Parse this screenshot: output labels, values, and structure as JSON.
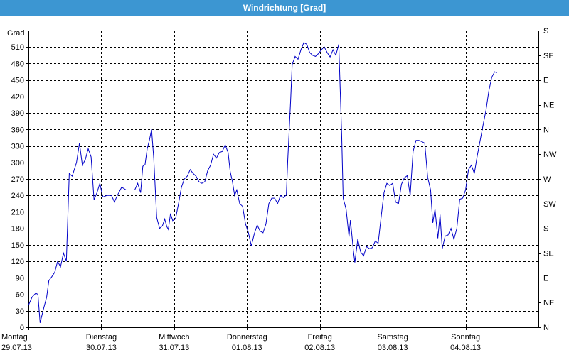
{
  "window": {
    "title": "Windrichtung [Grad]"
  },
  "chart_data": {
    "type": "line",
    "title": "Windrichtung [Grad]",
    "ylabel": "Grad",
    "ylim": [
      0,
      540
    ],
    "xlim": [
      0,
      7
    ],
    "grid": true,
    "y_ticks": [
      0,
      30,
      60,
      90,
      120,
      150,
      180,
      210,
      240,
      270,
      300,
      330,
      360,
      390,
      420,
      450,
      480,
      510
    ],
    "right_ticks": [
      {
        "value": 0,
        "label": "N"
      },
      {
        "value": 45,
        "label": "NE"
      },
      {
        "value": 90,
        "label": "E"
      },
      {
        "value": 135,
        "label": "SE"
      },
      {
        "value": 180,
        "label": "S"
      },
      {
        "value": 225,
        "label": "SW"
      },
      {
        "value": 270,
        "label": "W"
      },
      {
        "value": 315,
        "label": "NW"
      },
      {
        "value": 360,
        "label": "N"
      },
      {
        "value": 405,
        "label": "NE"
      },
      {
        "value": 450,
        "label": "E"
      },
      {
        "value": 495,
        "label": "SE"
      },
      {
        "value": 540,
        "label": "S"
      }
    ],
    "categories": [
      {
        "day": "Montag",
        "date": "29.07.13"
      },
      {
        "day": "Dienstag",
        "date": "30.07.13"
      },
      {
        "day": "Mittwoch",
        "date": "31.07.13"
      },
      {
        "day": "Donnerstag",
        "date": "01.08.13"
      },
      {
        "day": "Freitag",
        "date": "02.08.13"
      },
      {
        "day": "Samstag",
        "date": "03.08.13"
      },
      {
        "day": "Sonntag",
        "date": "04.08.13"
      }
    ],
    "series": [
      {
        "color": "#0000c8",
        "points": [
          [
            0.0,
            40
          ],
          [
            0.05,
            55
          ],
          [
            0.1,
            62
          ],
          [
            0.13,
            60
          ],
          [
            0.16,
            8
          ],
          [
            0.2,
            30
          ],
          [
            0.25,
            55
          ],
          [
            0.28,
            85
          ],
          [
            0.32,
            92
          ],
          [
            0.36,
            100
          ],
          [
            0.4,
            120
          ],
          [
            0.44,
            110
          ],
          [
            0.48,
            135
          ],
          [
            0.52,
            120
          ],
          [
            0.56,
            280
          ],
          [
            0.6,
            275
          ],
          [
            0.66,
            300
          ],
          [
            0.7,
            335
          ],
          [
            0.74,
            295
          ],
          [
            0.78,
            305
          ],
          [
            0.82,
            325
          ],
          [
            0.86,
            310
          ],
          [
            0.9,
            232
          ],
          [
            0.94,
            245
          ],
          [
            0.98,
            262
          ],
          [
            1.02,
            237
          ],
          [
            1.08,
            240
          ],
          [
            1.14,
            240
          ],
          [
            1.18,
            228
          ],
          [
            1.22,
            240
          ],
          [
            1.28,
            255
          ],
          [
            1.34,
            250
          ],
          [
            1.4,
            250
          ],
          [
            1.46,
            250
          ],
          [
            1.5,
            262
          ],
          [
            1.54,
            245
          ],
          [
            1.57,
            293
          ],
          [
            1.6,
            296
          ],
          [
            1.63,
            325
          ],
          [
            1.66,
            340
          ],
          [
            1.69,
            360
          ],
          [
            1.72,
            307
          ],
          [
            1.76,
            200
          ],
          [
            1.8,
            180
          ],
          [
            1.84,
            185
          ],
          [
            1.87,
            197
          ],
          [
            1.9,
            183
          ],
          [
            1.92,
            178
          ],
          [
            1.95,
            207
          ],
          [
            1.98,
            194
          ],
          [
            2.02,
            198
          ],
          [
            2.06,
            225
          ],
          [
            2.1,
            255
          ],
          [
            2.14,
            270
          ],
          [
            2.18,
            275
          ],
          [
            2.22,
            287
          ],
          [
            2.26,
            280
          ],
          [
            2.3,
            275
          ],
          [
            2.34,
            265
          ],
          [
            2.38,
            262
          ],
          [
            2.42,
            265
          ],
          [
            2.46,
            285
          ],
          [
            2.5,
            295
          ],
          [
            2.54,
            315
          ],
          [
            2.58,
            308
          ],
          [
            2.62,
            318
          ],
          [
            2.66,
            320
          ],
          [
            2.7,
            332
          ],
          [
            2.74,
            318
          ],
          [
            2.77,
            283
          ],
          [
            2.8,
            265
          ],
          [
            2.83,
            240
          ],
          [
            2.86,
            250
          ],
          [
            2.9,
            225
          ],
          [
            2.94,
            220
          ],
          [
            2.98,
            188
          ],
          [
            3.02,
            172
          ],
          [
            3.06,
            148
          ],
          [
            3.1,
            170
          ],
          [
            3.14,
            186
          ],
          [
            3.18,
            175
          ],
          [
            3.22,
            172
          ],
          [
            3.26,
            188
          ],
          [
            3.3,
            225
          ],
          [
            3.34,
            235
          ],
          [
            3.38,
            235
          ],
          [
            3.42,
            225
          ],
          [
            3.46,
            240
          ],
          [
            3.5,
            236
          ],
          [
            3.54,
            241
          ],
          [
            3.56,
            305
          ],
          [
            3.58,
            360
          ],
          [
            3.6,
            415
          ],
          [
            3.62,
            478
          ],
          [
            3.66,
            493
          ],
          [
            3.7,
            488
          ],
          [
            3.74,
            505
          ],
          [
            3.78,
            518
          ],
          [
            3.82,
            515
          ],
          [
            3.86,
            500
          ],
          [
            3.9,
            495
          ],
          [
            3.94,
            493
          ],
          [
            3.98,
            498
          ],
          [
            4.02,
            505
          ],
          [
            4.06,
            510
          ],
          [
            4.1,
            500
          ],
          [
            4.14,
            492
          ],
          [
            4.18,
            505
          ],
          [
            4.22,
            495
          ],
          [
            4.26,
            515
          ],
          [
            4.3,
            350
          ],
          [
            4.32,
            235
          ],
          [
            4.36,
            215
          ],
          [
            4.4,
            165
          ],
          [
            4.42,
            195
          ],
          [
            4.46,
            140
          ],
          [
            4.48,
            118
          ],
          [
            4.52,
            160
          ],
          [
            4.56,
            137
          ],
          [
            4.6,
            130
          ],
          [
            4.64,
            147
          ],
          [
            4.68,
            143
          ],
          [
            4.72,
            145
          ],
          [
            4.76,
            157
          ],
          [
            4.8,
            153
          ],
          [
            4.84,
            200
          ],
          [
            4.88,
            245
          ],
          [
            4.92,
            262
          ],
          [
            4.96,
            258
          ],
          [
            5.0,
            262
          ],
          [
            5.04,
            228
          ],
          [
            5.08,
            225
          ],
          [
            5.12,
            260
          ],
          [
            5.16,
            272
          ],
          [
            5.2,
            276
          ],
          [
            5.24,
            240
          ],
          [
            5.28,
            320
          ],
          [
            5.32,
            340
          ],
          [
            5.36,
            340
          ],
          [
            5.4,
            338
          ],
          [
            5.44,
            335
          ],
          [
            5.48,
            273
          ],
          [
            5.52,
            250
          ],
          [
            5.55,
            190
          ],
          [
            5.58,
            215
          ],
          [
            5.62,
            162
          ],
          [
            5.65,
            205
          ],
          [
            5.68,
            143
          ],
          [
            5.72,
            166
          ],
          [
            5.76,
            168
          ],
          [
            5.8,
            180
          ],
          [
            5.84,
            160
          ],
          [
            5.88,
            180
          ],
          [
            5.92,
            233
          ],
          [
            5.96,
            235
          ],
          [
            6.0,
            250
          ],
          [
            6.04,
            287
          ],
          [
            6.08,
            295
          ],
          [
            6.12,
            280
          ],
          [
            6.16,
            312
          ],
          [
            6.2,
            340
          ],
          [
            6.24,
            368
          ],
          [
            6.28,
            395
          ],
          [
            6.32,
            430
          ],
          [
            6.36,
            455
          ],
          [
            6.4,
            465
          ],
          [
            6.43,
            463
          ]
        ]
      }
    ]
  }
}
